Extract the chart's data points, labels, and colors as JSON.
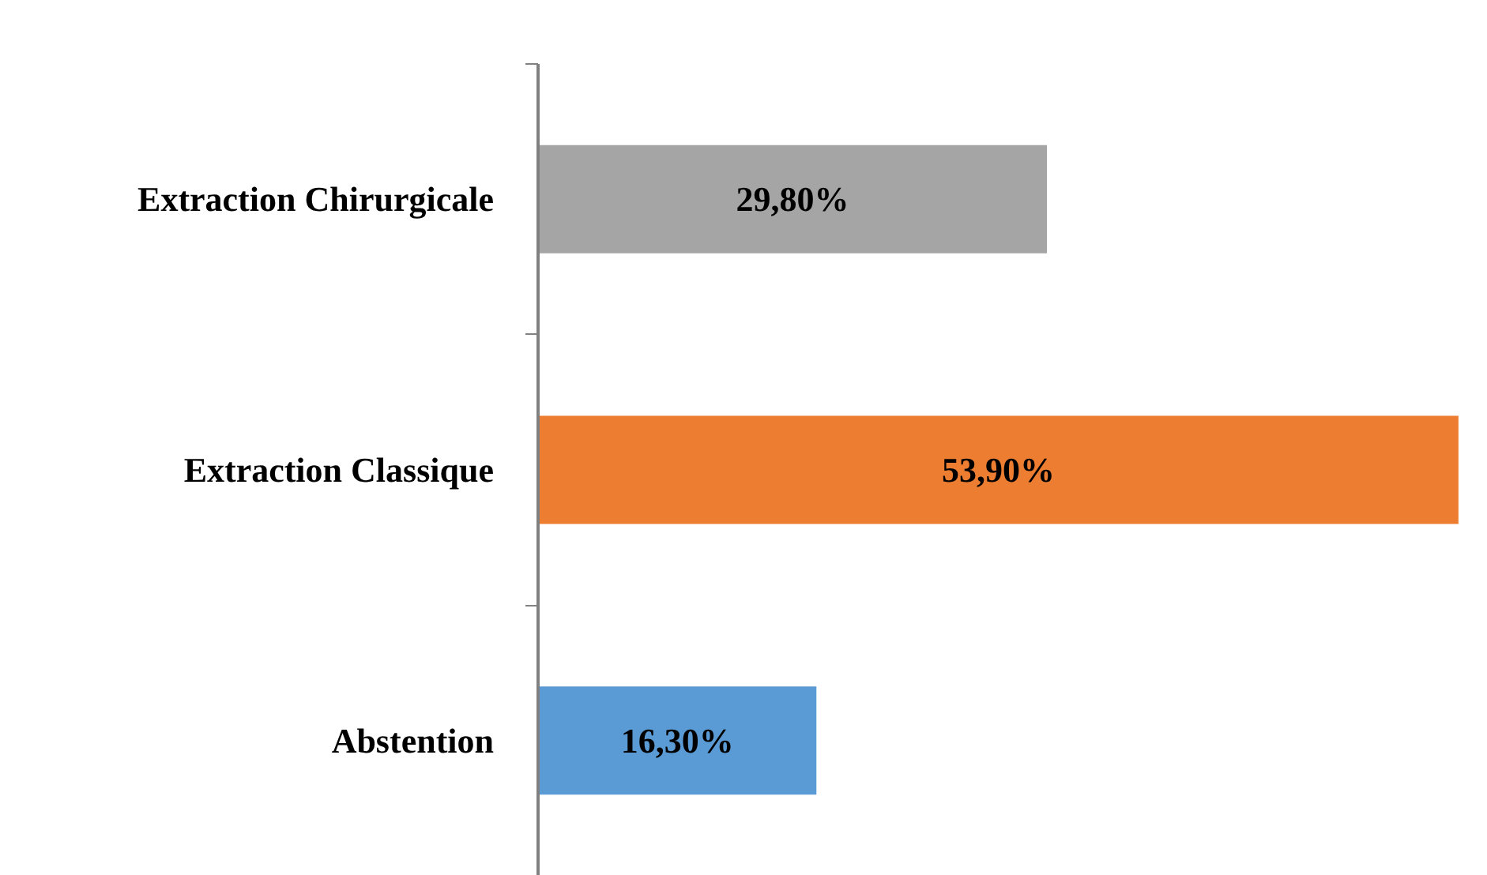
{
  "chart_data": {
    "type": "bar",
    "orientation": "horizontal",
    "categories": [
      "Extraction Chirurgicale",
      "Extraction Classique",
      "Abstention"
    ],
    "values": [
      29.8,
      53.9,
      16.3
    ],
    "colors": [
      "#a5a5a5",
      "#ed7d31",
      "#5b9bd5"
    ],
    "value_labels": [
      "29,80%",
      "53,90%",
      "16,30%"
    ]
  }
}
